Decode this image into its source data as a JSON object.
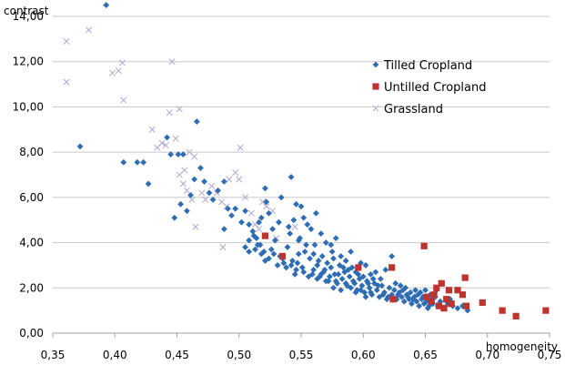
{
  "chart_data": {
    "type": "scatter",
    "xlabel": "homogeneity",
    "ylabel": "contrast",
    "xlim": [
      0.35,
      0.75
    ],
    "ylim": [
      0,
      14
    ],
    "x_ticks": [
      "0,35",
      "0,40",
      "0,45",
      "0,50",
      "0,55",
      "0,60",
      "0,65",
      "0,70",
      "0,75"
    ],
    "y_ticks": [
      "0,00",
      "2,00",
      "4,00",
      "6,00",
      "8,00",
      "10,00",
      "12,00",
      "14,00"
    ],
    "grid": "horizontal",
    "legend_position": "top-right",
    "colors": {
      "tilled": "#2e6db4",
      "untilled": "#c0322d",
      "grassland": "#b0a8cf"
    },
    "series": [
      {
        "name": "Tilled Cropland",
        "marker": "diamond",
        "points": [
          [
            0.393,
            14.5
          ],
          [
            0.372,
            8.25
          ],
          [
            0.407,
            7.55
          ],
          [
            0.418,
            7.55
          ],
          [
            0.423,
            7.55
          ],
          [
            0.427,
            6.6
          ],
          [
            0.442,
            8.65
          ],
          [
            0.445,
            7.9
          ],
          [
            0.451,
            7.9
          ],
          [
            0.455,
            7.9
          ],
          [
            0.466,
            9.35
          ],
          [
            0.448,
            5.1
          ],
          [
            0.453,
            5.7
          ],
          [
            0.458,
            5.4
          ],
          [
            0.461,
            6.1
          ],
          [
            0.464,
            6.8
          ],
          [
            0.469,
            7.3
          ],
          [
            0.472,
            6.7
          ],
          [
            0.476,
            6.2
          ],
          [
            0.479,
            5.9
          ],
          [
            0.483,
            6.3
          ],
          [
            0.488,
            6.7
          ],
          [
            0.491,
            5.5
          ],
          [
            0.494,
            5.2
          ],
          [
            0.488,
            4.6
          ],
          [
            0.497,
            5.5
          ],
          [
            0.502,
            4.9
          ],
          [
            0.505,
            5.4
          ],
          [
            0.508,
            4.8
          ],
          [
            0.511,
            4.5
          ],
          [
            0.514,
            4.2
          ],
          [
            0.518,
            5.1
          ],
          [
            0.521,
            6.4
          ],
          [
            0.522,
            5.8
          ],
          [
            0.524,
            5.3
          ],
          [
            0.516,
            4.9
          ],
          [
            0.527,
            4.6
          ],
          [
            0.532,
            4.9
          ],
          [
            0.505,
            3.8
          ],
          [
            0.508,
            3.6
          ],
          [
            0.512,
            4.3
          ],
          [
            0.515,
            3.9
          ],
          [
            0.518,
            3.5
          ],
          [
            0.521,
            3.2
          ],
          [
            0.526,
            3.7
          ],
          [
            0.529,
            4.1
          ],
          [
            0.533,
            3.4
          ],
          [
            0.536,
            3.1
          ],
          [
            0.539,
            3.8
          ],
          [
            0.541,
            4.4
          ],
          [
            0.543,
            3.2
          ],
          [
            0.546,
            2.8
          ],
          [
            0.548,
            3.5
          ],
          [
            0.549,
            4.2
          ],
          [
            0.551,
            2.9
          ],
          [
            0.553,
            3.6
          ],
          [
            0.555,
            4.8
          ],
          [
            0.557,
            3.3
          ],
          [
            0.559,
            2.6
          ],
          [
            0.561,
            3.9
          ],
          [
            0.563,
            3.0
          ],
          [
            0.565,
            2.5
          ],
          [
            0.567,
            3.4
          ],
          [
            0.569,
            2.8
          ],
          [
            0.571,
            3.1
          ],
          [
            0.572,
            2.3
          ],
          [
            0.574,
            2.9
          ],
          [
            0.575,
            3.6
          ],
          [
            0.577,
            2.6
          ],
          [
            0.579,
            2.2
          ],
          [
            0.581,
            3.0
          ],
          [
            0.583,
            2.4
          ],
          [
            0.585,
            2.7
          ],
          [
            0.587,
            2.1
          ],
          [
            0.589,
            2.5
          ],
          [
            0.591,
            2.9
          ],
          [
            0.593,
            2.2
          ],
          [
            0.595,
            1.9
          ],
          [
            0.597,
            2.4
          ],
          [
            0.599,
            2.1
          ],
          [
            0.601,
            1.8
          ],
          [
            0.603,
            2.3
          ],
          [
            0.605,
            2.0
          ],
          [
            0.607,
            1.7
          ],
          [
            0.609,
            2.2
          ],
          [
            0.611,
            1.9
          ],
          [
            0.613,
            1.6
          ],
          [
            0.615,
            2.1
          ],
          [
            0.617,
            1.8
          ],
          [
            0.619,
            1.5
          ],
          [
            0.621,
            2.0
          ],
          [
            0.623,
            1.7
          ],
          [
            0.625,
            1.9
          ],
          [
            0.627,
            1.5
          ],
          [
            0.629,
            1.8
          ],
          [
            0.631,
            1.6
          ],
          [
            0.633,
            1.4
          ],
          [
            0.635,
            1.7
          ],
          [
            0.637,
            1.5
          ],
          [
            0.639,
            1.3
          ],
          [
            0.641,
            1.6
          ],
          [
            0.643,
            1.4
          ],
          [
            0.645,
            1.2
          ],
          [
            0.647,
            1.5
          ],
          [
            0.649,
            1.3
          ],
          [
            0.651,
            1.4
          ],
          [
            0.653,
            1.2
          ],
          [
            0.655,
            1.5
          ],
          [
            0.534,
            6.0
          ],
          [
            0.542,
            6.9
          ],
          [
            0.546,
            5.7
          ],
          [
            0.552,
            5.1
          ],
          [
            0.558,
            4.6
          ],
          [
            0.562,
            5.3
          ],
          [
            0.566,
            4.4
          ],
          [
            0.57,
            4.0
          ],
          [
            0.574,
            3.9
          ],
          [
            0.578,
            4.2
          ],
          [
            0.582,
            3.4
          ],
          [
            0.586,
            3.2
          ],
          [
            0.59,
            3.6
          ],
          [
            0.594,
            2.7
          ],
          [
            0.54,
            4.7
          ],
          [
            0.544,
            5.0
          ],
          [
            0.548,
            4.1
          ],
          [
            0.55,
            5.6
          ],
          [
            0.554,
            3.9
          ],
          [
            0.56,
            3.5
          ],
          [
            0.564,
            3.2
          ],
          [
            0.568,
            2.7
          ],
          [
            0.576,
            3.3
          ],
          [
            0.58,
            2.6
          ],
          [
            0.584,
            2.9
          ],
          [
            0.588,
            2.8
          ],
          [
            0.592,
            2.3
          ],
          [
            0.596,
            2.6
          ],
          [
            0.6,
            2.5
          ],
          [
            0.604,
            2.2
          ],
          [
            0.608,
            2.4
          ],
          [
            0.612,
            2.1
          ],
          [
            0.616,
            1.7
          ],
          [
            0.62,
            1.6
          ],
          [
            0.624,
            1.5
          ],
          [
            0.628,
            1.7
          ],
          [
            0.632,
            1.9
          ],
          [
            0.636,
            1.6
          ],
          [
            0.64,
            1.5
          ],
          [
            0.644,
            1.7
          ],
          [
            0.648,
            1.6
          ],
          [
            0.652,
            1.1
          ],
          [
            0.623,
            3.4
          ],
          [
            0.618,
            2.8
          ],
          [
            0.61,
            2.7
          ],
          [
            0.602,
            3.0
          ],
          [
            0.598,
            3.1
          ],
          [
            0.606,
            2.6
          ],
          [
            0.614,
            2.4
          ],
          [
            0.626,
            2.2
          ],
          [
            0.63,
            2.1
          ],
          [
            0.634,
            2.0
          ],
          [
            0.638,
            1.8
          ],
          [
            0.642,
            1.9
          ],
          [
            0.646,
            1.8
          ],
          [
            0.65,
            1.9
          ],
          [
            0.656,
            1.3
          ],
          [
            0.66,
            1.2
          ],
          [
            0.664,
            1.1
          ],
          [
            0.668,
            1.3
          ],
          [
            0.672,
            1.2
          ],
          [
            0.676,
            1.1
          ],
          [
            0.68,
            1.2
          ],
          [
            0.684,
            1.0
          ],
          [
            0.658,
            1.6
          ],
          [
            0.662,
            1.4
          ],
          [
            0.67,
            1.5
          ],
          [
            0.654,
            1.7
          ],
          [
            0.659,
            1.9
          ],
          [
            0.508,
            4.1
          ],
          [
            0.513,
            3.7
          ],
          [
            0.517,
            3.9
          ],
          [
            0.52,
            3.6
          ],
          [
            0.524,
            3.3
          ],
          [
            0.528,
            3.5
          ],
          [
            0.531,
            3.0
          ],
          [
            0.535,
            3.3
          ],
          [
            0.538,
            2.9
          ],
          [
            0.542,
            3.0
          ],
          [
            0.545,
            2.6
          ],
          [
            0.547,
            3.1
          ],
          [
            0.552,
            2.7
          ],
          [
            0.556,
            2.5
          ],
          [
            0.56,
            2.8
          ],
          [
            0.563,
            2.4
          ],
          [
            0.566,
            2.6
          ],
          [
            0.57,
            2.3
          ],
          [
            0.573,
            2.5
          ],
          [
            0.576,
            2.0
          ],
          [
            0.578,
            2.3
          ],
          [
            0.582,
            1.9
          ],
          [
            0.586,
            2.2
          ],
          [
            0.59,
            2.0
          ],
          [
            0.594,
            1.8
          ],
          [
            0.598,
            1.9
          ],
          [
            0.602,
            1.6
          ],
          [
            0.606,
            1.8
          ]
        ]
      },
      {
        "name": "Untilled Cropland",
        "marker": "square",
        "points": [
          [
            0.521,
            4.3
          ],
          [
            0.535,
            3.4
          ],
          [
            0.596,
            2.9
          ],
          [
            0.623,
            2.9
          ],
          [
            0.624,
            1.5
          ],
          [
            0.649,
            3.85
          ],
          [
            0.651,
            1.6
          ],
          [
            0.655,
            1.4
          ],
          [
            0.657,
            1.7
          ],
          [
            0.659,
            2.0
          ],
          [
            0.661,
            1.2
          ],
          [
            0.663,
            2.2
          ],
          [
            0.665,
            1.1
          ],
          [
            0.667,
            1.5
          ],
          [
            0.669,
            1.9
          ],
          [
            0.671,
            1.3
          ],
          [
            0.676,
            1.9
          ],
          [
            0.68,
            1.7
          ],
          [
            0.682,
            2.45
          ],
          [
            0.683,
            1.2
          ],
          [
            0.696,
            1.35
          ],
          [
            0.712,
            1.0
          ],
          [
            0.723,
            0.75
          ],
          [
            0.747,
            1.0
          ]
        ]
      },
      {
        "name": "Grassland",
        "marker": "x",
        "points": [
          [
            0.361,
            12.9
          ],
          [
            0.361,
            11.1
          ],
          [
            0.379,
            13.4
          ],
          [
            0.398,
            11.5
          ],
          [
            0.403,
            11.6
          ],
          [
            0.406,
            11.95
          ],
          [
            0.407,
            10.3
          ],
          [
            0.446,
            12.0
          ],
          [
            0.43,
            9.0
          ],
          [
            0.434,
            8.2
          ],
          [
            0.438,
            8.4
          ],
          [
            0.441,
            8.3
          ],
          [
            0.444,
            9.75
          ],
          [
            0.452,
            9.9
          ],
          [
            0.449,
            8.6
          ],
          [
            0.46,
            8.0
          ],
          [
            0.464,
            7.8
          ],
          [
            0.452,
            7.0
          ],
          [
            0.455,
            6.6
          ],
          [
            0.458,
            6.3
          ],
          [
            0.462,
            5.9
          ],
          [
            0.465,
            4.7
          ],
          [
            0.473,
            5.9
          ],
          [
            0.478,
            6.5
          ],
          [
            0.482,
            6.2
          ],
          [
            0.486,
            5.8
          ],
          [
            0.49,
            5.6
          ],
          [
            0.492,
            6.8
          ],
          [
            0.497,
            7.1
          ],
          [
            0.5,
            6.8
          ],
          [
            0.501,
            8.2
          ],
          [
            0.505,
            6.0
          ],
          [
            0.51,
            5.3
          ],
          [
            0.513,
            4.8
          ],
          [
            0.519,
            5.8
          ],
          [
            0.522,
            5.6
          ],
          [
            0.527,
            5.4
          ],
          [
            0.487,
            3.8
          ],
          [
            0.545,
            4.7
          ],
          [
            0.53,
            4.2
          ],
          [
            0.516,
            4.6
          ],
          [
            0.47,
            6.2
          ],
          [
            0.456,
            7.2
          ]
        ]
      }
    ]
  }
}
